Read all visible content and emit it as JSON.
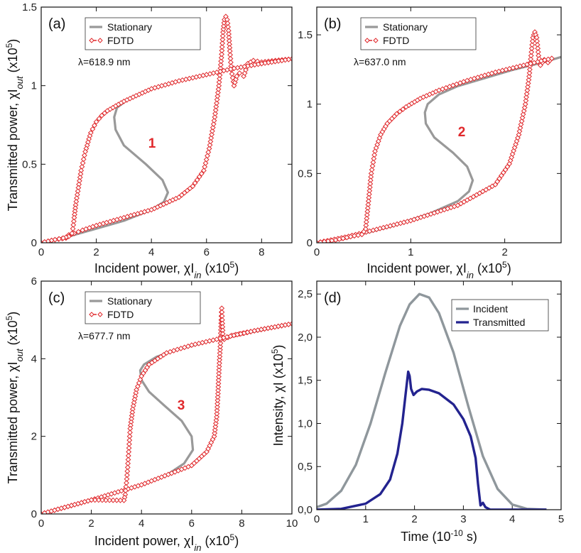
{
  "colors": {
    "stationary": "#999999",
    "fdtd": "#e0282b",
    "incident": "#8f979c",
    "transmitted": "#23238f",
    "frame": "#111111"
  },
  "chart_data": [
    {
      "type": "line",
      "panel": "(a)",
      "annotation": "λ=618.9 nm",
      "branch_label": "1",
      "xlabel": "Incident power, χI_in (x10^5)",
      "ylabel": "Transmitted power, χI_out (x10^5)",
      "xlim": [
        0,
        9.1
      ],
      "ylim": [
        0,
        1.5
      ],
      "xticks": [
        0,
        2,
        4,
        6,
        8
      ],
      "xtick_labels": [
        "0",
        "2",
        "4",
        "6",
        "8"
      ],
      "yticks": [
        0,
        0.5,
        1,
        1.5
      ],
      "ytick_labels": [
        "0",
        "0.5",
        "1",
        "1.5"
      ],
      "legend": [
        "Stationary",
        "FDTD"
      ],
      "legend_position": "top-left",
      "series": [
        {
          "name": "Stationary",
          "x": [
            0,
            1,
            2,
            3,
            4,
            4.45,
            4.6,
            4.4,
            3.8,
            3.0,
            2.7,
            2.65,
            2.75,
            3.2,
            4,
            5,
            6,
            7,
            8,
            9.1
          ],
          "y": [
            0,
            0.04,
            0.09,
            0.14,
            0.21,
            0.26,
            0.32,
            0.4,
            0.5,
            0.62,
            0.72,
            0.8,
            0.86,
            0.92,
            0.98,
            1.03,
            1.07,
            1.11,
            1.14,
            1.17
          ]
        },
        {
          "name": "FDTD up",
          "x": [
            0,
            0.5,
            0.9,
            1.0,
            1.2,
            1.5,
            2,
            3,
            4,
            5,
            5.5,
            5.9,
            6.1,
            6.3,
            6.45,
            6.55,
            6.6,
            6.65,
            6.7,
            6.75,
            6.8,
            6.85,
            6.9,
            7.0,
            7.1,
            7.2,
            7.35,
            7.5,
            7.7,
            8,
            8.5,
            9.1
          ],
          "y": [
            0,
            0.02,
            0.03,
            0.05,
            0.06,
            0.08,
            0.11,
            0.16,
            0.21,
            0.29,
            0.36,
            0.46,
            0.6,
            0.8,
            1.0,
            1.2,
            1.34,
            1.42,
            1.44,
            1.42,
            1.35,
            1.22,
            1.1,
            1.0,
            1.06,
            1.08,
            1.06,
            1.14,
            1.16,
            1.15,
            1.16,
            1.17
          ]
        },
        {
          "name": "FDTD down",
          "x": [
            9.1,
            8,
            7,
            6,
            5,
            4,
            3,
            2.7,
            2.4,
            2.2,
            2.0,
            1.8,
            1.6,
            1.45,
            1.35,
            1.25,
            1.2,
            1.15,
            1.12,
            1.0,
            0.8,
            0.5,
            0
          ],
          "y": [
            1.17,
            1.14,
            1.11,
            1.07,
            1.03,
            0.98,
            0.9,
            0.87,
            0.84,
            0.81,
            0.77,
            0.7,
            0.58,
            0.46,
            0.35,
            0.24,
            0.16,
            0.09,
            0.06,
            0.04,
            0.03,
            0.02,
            0
          ]
        }
      ]
    },
    {
      "type": "line",
      "panel": "(b)",
      "annotation": "λ=637.0 nm",
      "branch_label": "2",
      "xlabel": "Incident power, χI_in (x10^5)",
      "ylabel": "",
      "xlim": [
        0,
        2.6
      ],
      "ylim": [
        0,
        1.7
      ],
      "xticks": [
        0,
        1,
        2
      ],
      "xtick_labels": [
        "0",
        "1",
        "2"
      ],
      "yticks": [
        0,
        0.5,
        1,
        1.5
      ],
      "ytick_labels": [
        "0",
        "0.5",
        "1",
        "1.5"
      ],
      "legend": [
        "Stationary",
        "FDTD"
      ],
      "legend_position": "top-left",
      "series": [
        {
          "name": "Stationary",
          "x": [
            0,
            0.4,
            0.8,
            1.2,
            1.5,
            1.62,
            1.66,
            1.6,
            1.45,
            1.25,
            1.16,
            1.15,
            1.18,
            1.3,
            1.5,
            1.8,
            2.1,
            2.4,
            2.6
          ],
          "y": [
            0,
            0.05,
            0.12,
            0.21,
            0.3,
            0.37,
            0.45,
            0.55,
            0.65,
            0.76,
            0.86,
            0.94,
            1.0,
            1.07,
            1.13,
            1.19,
            1.25,
            1.3,
            1.34
          ]
        },
        {
          "name": "FDTD up",
          "x": [
            0,
            0.3,
            0.6,
            1.0,
            1.5,
            1.9,
            2.05,
            2.15,
            2.22,
            2.26,
            2.28,
            2.3,
            2.32,
            2.34,
            2.36,
            2.38,
            2.42,
            2.46,
            2.5
          ],
          "y": [
            0,
            0.04,
            0.09,
            0.16,
            0.27,
            0.42,
            0.57,
            0.78,
            1.0,
            1.2,
            1.35,
            1.48,
            1.52,
            1.48,
            1.35,
            1.28,
            1.32,
            1.3,
            1.33
          ]
        },
        {
          "name": "FDTD down",
          "x": [
            2.5,
            2.2,
            1.9,
            1.6,
            1.3,
            1.1,
            0.95,
            0.85,
            0.75,
            0.68,
            0.62,
            0.58,
            0.55,
            0.52,
            0.48,
            0.4,
            0.2,
            0
          ],
          "y": [
            1.33,
            1.28,
            1.23,
            1.17,
            1.1,
            1.04,
            0.98,
            0.93,
            0.86,
            0.78,
            0.66,
            0.5,
            0.3,
            0.1,
            0.06,
            0.05,
            0.02,
            0
          ]
        }
      ]
    },
    {
      "type": "line",
      "panel": "(c)",
      "annotation": "λ=677.7 nm",
      "branch_label": "3",
      "xlabel": "Incident power, χI_in (x10^5)",
      "ylabel": "Transmitted power, χI_out (x10^5)",
      "xlim": [
        0,
        10
      ],
      "ylim": [
        0,
        6
      ],
      "xticks": [
        0,
        2,
        4,
        6,
        8,
        10
      ],
      "xtick_labels": [
        "0",
        "2",
        "4",
        "6",
        "8",
        "10"
      ],
      "yticks": [
        0,
        2,
        4,
        6
      ],
      "ytick_labels": [
        "0",
        "2",
        "4",
        "6"
      ],
      "legend": [
        "Stationary",
        "FDTD"
      ],
      "legend_position": "top-left",
      "series": [
        {
          "name": "Stationary",
          "x": [
            0,
            1,
            2,
            3,
            4,
            5,
            5.7,
            6.05,
            6.0,
            5.6,
            4.9,
            4.3,
            4.0,
            3.95,
            4.1,
            4.6,
            5.5,
            6.5,
            7.5,
            8.5,
            10
          ],
          "y": [
            0,
            0.18,
            0.36,
            0.55,
            0.75,
            1.0,
            1.3,
            1.65,
            2.0,
            2.4,
            2.8,
            3.15,
            3.45,
            3.7,
            3.85,
            4.05,
            4.25,
            4.42,
            4.58,
            4.7,
            4.9
          ]
        },
        {
          "name": "FDTD up",
          "x": [
            0,
            2,
            4,
            6,
            6.6,
            6.9,
            7.0,
            7.05,
            7.1,
            7.15,
            7.18,
            7.2,
            7.22,
            7.25,
            7.3,
            7.6,
            8.5,
            10
          ],
          "y": [
            0,
            0.36,
            0.75,
            1.25,
            1.6,
            2.0,
            2.5,
            3.1,
            3.8,
            4.4,
            5.0,
            5.3,
            5.0,
            4.55,
            4.5,
            4.6,
            4.72,
            4.9
          ]
        },
        {
          "name": "FDTD down",
          "x": [
            10,
            8.5,
            7,
            6,
            5,
            4.3,
            4.0,
            3.8,
            3.65,
            3.55,
            3.5,
            3.45,
            3.4,
            3.35,
            3.3,
            2,
            0
          ],
          "y": [
            4.9,
            4.72,
            4.5,
            4.35,
            4.15,
            3.85,
            3.55,
            3.2,
            2.7,
            2.2,
            1.7,
            1.2,
            0.8,
            0.5,
            0.35,
            0.36,
            0
          ]
        }
      ]
    },
    {
      "type": "line",
      "panel": "(d)",
      "xlabel": "Time (10^-10 s)",
      "ylabel": "Intensity, χI (x10^5)",
      "xlim": [
        0,
        5
      ],
      "ylim": [
        0,
        2.65
      ],
      "xticks": [
        0,
        1,
        2,
        3,
        4,
        5
      ],
      "xtick_labels": [
        "0",
        "1",
        "2",
        "3",
        "4",
        "5"
      ],
      "yticks": [
        0,
        0.5,
        1,
        1.5,
        2,
        2.5
      ],
      "ytick_labels": [
        "0,0",
        "0,5",
        "1,0",
        "1,5",
        "2,0",
        "2,5"
      ],
      "legend": [
        "Incident",
        "Transmitted"
      ],
      "legend_position": "top-right",
      "series": [
        {
          "name": "Incident",
          "x": [
            0,
            0.2,
            0.5,
            0.8,
            1.1,
            1.4,
            1.7,
            1.9,
            2.1,
            2.3,
            2.5,
            2.8,
            3.1,
            3.4,
            3.7,
            4.0,
            4.3,
            4.7
          ],
          "y": [
            0.03,
            0.07,
            0.22,
            0.52,
            1.0,
            1.58,
            2.13,
            2.38,
            2.5,
            2.46,
            2.28,
            1.82,
            1.2,
            0.62,
            0.24,
            0.06,
            0.01,
            0.0
          ]
        },
        {
          "name": "Transmitted",
          "x": [
            0,
            0.5,
            1.0,
            1.3,
            1.5,
            1.65,
            1.75,
            1.82,
            1.87,
            1.9,
            1.93,
            1.98,
            2.05,
            2.15,
            2.3,
            2.5,
            2.8,
            3.0,
            3.15,
            3.25,
            3.3,
            3.35,
            3.4,
            3.45,
            3.55,
            3.7,
            4.7
          ],
          "y": [
            0.0,
            0.01,
            0.07,
            0.18,
            0.35,
            0.65,
            1.0,
            1.35,
            1.6,
            1.55,
            1.4,
            1.33,
            1.37,
            1.4,
            1.39,
            1.35,
            1.22,
            1.05,
            0.85,
            0.6,
            0.3,
            0.05,
            0.08,
            0.03,
            0.0,
            0.0,
            0.0
          ]
        }
      ]
    }
  ]
}
